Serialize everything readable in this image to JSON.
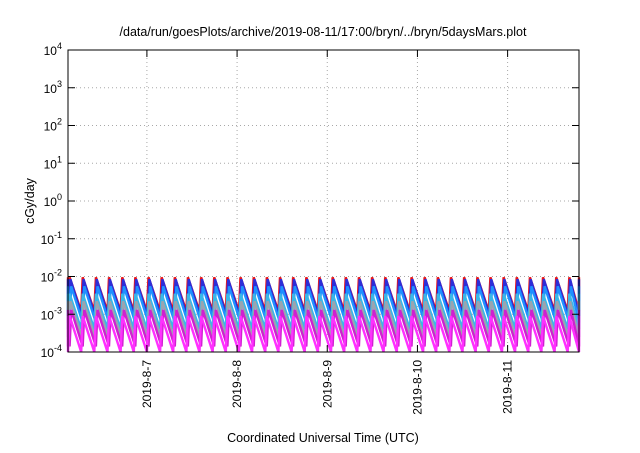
{
  "chart_data": {
    "type": "line",
    "title": "/data/run/goesPlots/archive/2019-08-11/17:00/bryn/../bryn/5daysMars.plot",
    "xlabel": "Coordinated Universal Time (UTC)",
    "ylabel": "cGy/day",
    "yscale": "log",
    "ylim": [
      0.0001,
      10000
    ],
    "xlim": [
      "2019-08-06 03:00",
      "2019-08-11 19:00"
    ],
    "grid": true,
    "x_ticks": [
      "2019-8-7",
      "2019-8-8",
      "2019-8-9",
      "2019-8-10",
      "2019-8-11"
    ],
    "y_ticks": [
      {
        "base": "10",
        "exp": "-4"
      },
      {
        "base": "10",
        "exp": "-3"
      },
      {
        "base": "10",
        "exp": "-2"
      },
      {
        "base": "10",
        "exp": "-1"
      },
      {
        "base": "10",
        "exp": "0"
      },
      {
        "base": "10",
        "exp": "1"
      },
      {
        "base": "10",
        "exp": "2"
      },
      {
        "base": "10",
        "exp": "3"
      },
      {
        "base": "10",
        "exp": "4"
      }
    ],
    "cycle_hours": 3.5,
    "series": [
      {
        "color": "#e8161b",
        "peak": 0.0095,
        "trough": 0.0012
      },
      {
        "color": "#2d2dd8",
        "peak": 0.0085,
        "trough": 0.0009
      },
      {
        "color": "#1e90ff",
        "peak": 0.0055,
        "trough": 0.0006
      },
      {
        "color": "#38b8e8",
        "peak": 0.0035,
        "trough": 0.0004
      },
      {
        "color": "#9aa4b0",
        "peak": 0.0022,
        "trough": 0.00025
      },
      {
        "color": "#d020d0",
        "peak": 0.0013,
        "trough": 0.00014
      },
      {
        "color": "#ff30ff",
        "peak": 0.0009,
        "trough": 0.0001
      }
    ]
  }
}
